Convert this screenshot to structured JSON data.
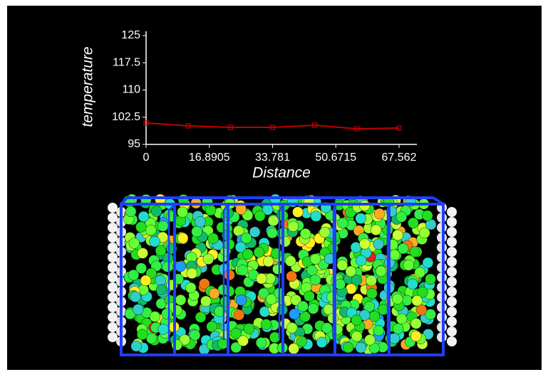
{
  "chart_data": {
    "type": "line",
    "x_label": "Distance",
    "y_label": "temperature",
    "x": [
      0,
      11.26,
      22.52,
      33.781,
      45.04,
      56.3,
      67.562
    ],
    "values": [
      100.9,
      100.1,
      99.7,
      99.7,
      100.3,
      99.3,
      99.5
    ],
    "color": "#c00000",
    "xlim": [
      0,
      67.562
    ],
    "xticks": [
      0,
      16.8905,
      33.781,
      50.6715,
      67.562
    ],
    "ylim": [
      95,
      125
    ],
    "yticks": [
      95,
      102.5,
      110,
      117.5,
      125
    ]
  }
}
